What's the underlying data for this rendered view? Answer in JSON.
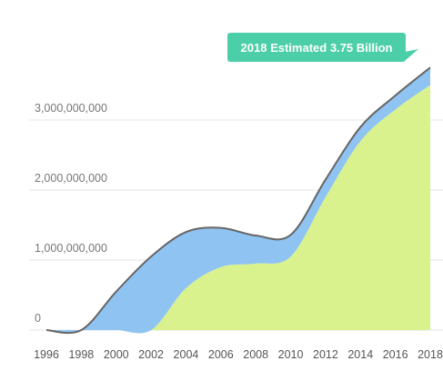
{
  "chart_data": {
    "type": "area",
    "stacked": true,
    "x": [
      1996,
      1998,
      2000,
      2002,
      2004,
      2006,
      2008,
      2010,
      2012,
      2014,
      2016,
      2018
    ],
    "x_ticks": [
      "1996",
      "1998",
      "2000",
      "2002",
      "2004",
      "2006",
      "2008",
      "2010",
      "2012",
      "2014",
      "2016",
      "2018"
    ],
    "y_ticks": [
      "0",
      "1,000,000,000",
      "2,000,000,000",
      "3,000,000,000"
    ],
    "ylim": [
      0,
      3750000000
    ],
    "grid": true,
    "series": [
      {
        "color": "#d9f28e",
        "values": [
          0,
          0,
          0,
          0,
          600000000,
          900000000,
          950000000,
          1050000000,
          1900000000,
          2700000000,
          3150000000,
          3500000000
        ]
      },
      {
        "color": "#8fc3f2",
        "values": [
          0,
          0,
          550000000,
          1050000000,
          800000000,
          560000000,
          400000000,
          310000000,
          250000000,
          200000000,
          200000000,
          250000000
        ]
      }
    ],
    "outline_color": "#666666",
    "tooltip": {
      "text": "2018 Estimated 3.75 Billion",
      "color": "#4ccfa8"
    }
  }
}
